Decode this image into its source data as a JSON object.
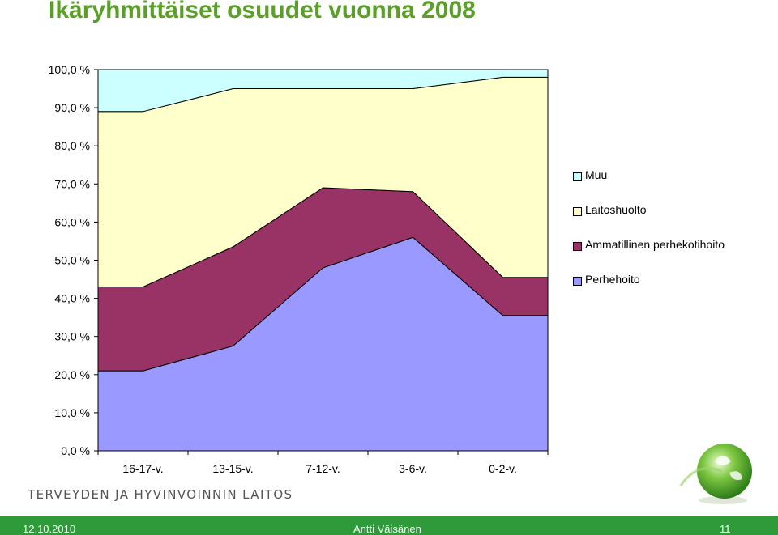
{
  "chart_data": {
    "type": "area",
    "stacked": true,
    "percent": true,
    "title": "Ikäryhmittäiset osuudet vuonna 2008",
    "categories": [
      "16-17-v.",
      "13-15-v.",
      "7-12-v.",
      "3-6-v.",
      "0-2-v."
    ],
    "yticks": [
      "0,0 %",
      "10,0 %",
      "20,0 %",
      "30,0 %",
      "40,0 %",
      "50,0 %",
      "60,0 %",
      "70,0 %",
      "80,0 %",
      "90,0 %",
      "100,0 %"
    ],
    "ylim": [
      0,
      100
    ],
    "series": [
      {
        "name": "Perhehoito",
        "values": [
          21.0,
          27.5,
          48.0,
          56.0,
          35.5
        ],
        "color": "#9999ff"
      },
      {
        "name": "Ammatillinen perhekotihoito",
        "values": [
          22.0,
          26.0,
          21.0,
          12.0,
          10.0
        ],
        "color": "#993366"
      },
      {
        "name": "Laitoshuolto",
        "values": [
          46.0,
          41.5,
          26.0,
          27.0,
          52.5
        ],
        "color": "#ffffcc"
      },
      {
        "name": "Muu",
        "values": [
          11.0,
          5.0,
          5.0,
          5.0,
          2.0
        ],
        "color": "#ccffff"
      }
    ],
    "legend_order": [
      "Muu",
      "Laitoshuolto",
      "Ammatillinen perhekotihoito",
      "Perhehoito"
    ],
    "legend_position": "right",
    "grid": false
  },
  "footer": {
    "organization": "TERVEYDEN JA HYVINVOINNIN LAITOS",
    "date": "12.10.2010",
    "author": "Antti Väisänen",
    "page": "11"
  },
  "colors": {
    "title": "#5aa028",
    "footer_bar": "#2e9a3a"
  },
  "icons": [
    "thl-globe-logo"
  ]
}
